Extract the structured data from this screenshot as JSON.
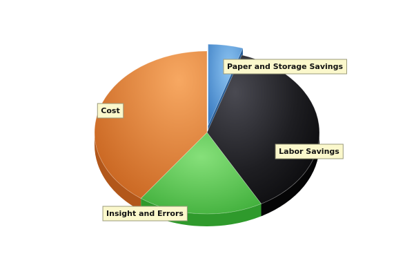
{
  "chart_data": {
    "type": "pie",
    "title": "",
    "series": [
      {
        "values": [
          {
            "label": "Paper and Storage Savings",
            "value": 5,
            "color": "#5b9bd5"
          },
          {
            "label": "Labor Savings",
            "value": 37,
            "color": "#1e1e22"
          },
          {
            "label": "Insight and Errors",
            "value": 18,
            "color": "#4cbf45"
          },
          {
            "label": "Cost",
            "value": 40,
            "color": "#e07a35"
          }
        ]
      }
    ],
    "exploded": [
      "Paper and Storage Savings"
    ],
    "style": "3d",
    "legend": "none"
  }
}
